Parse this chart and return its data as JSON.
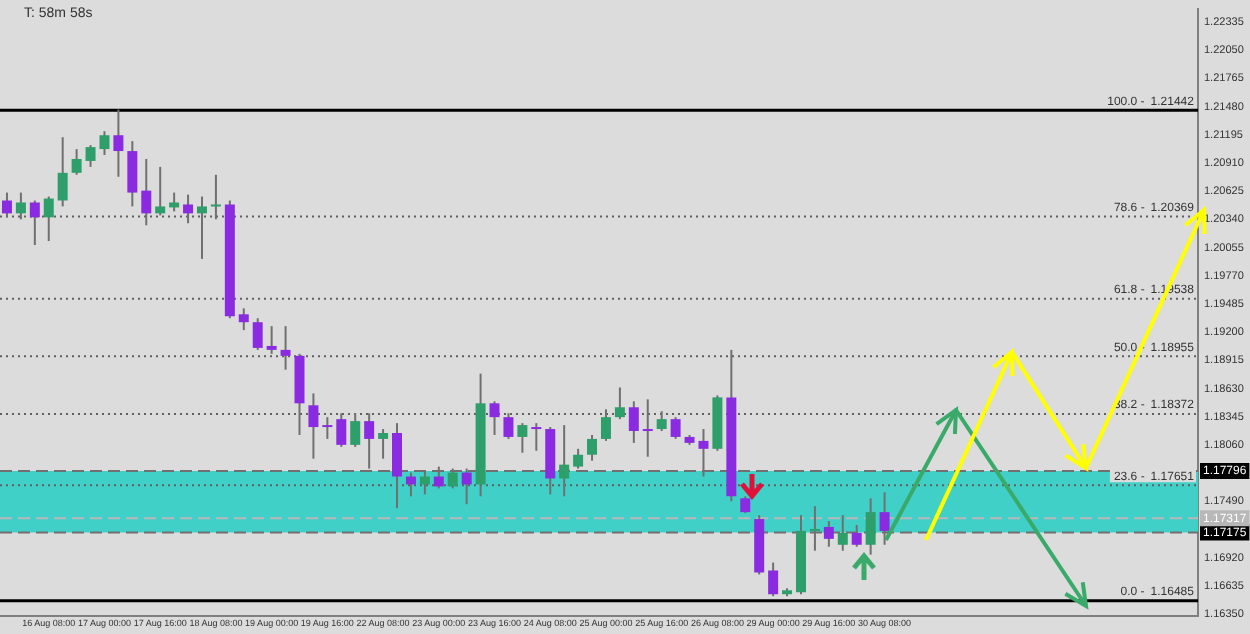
{
  "chart_data": {
    "type": "candlestick",
    "categories": [
      null,
      null,
      null,
      "16 Aug 08:00",
      null,
      null,
      null,
      "17 Aug 00:00",
      null,
      null,
      null,
      "17 Aug 16:00",
      null,
      null,
      null,
      "18 Aug 08:00",
      null,
      null,
      null,
      "19 Aug 00:00",
      null,
      null,
      null,
      "19 Aug 16:00",
      null,
      null,
      null,
      "22 Aug 08:00",
      null,
      null,
      null,
      "23 Aug 00:00",
      null,
      null,
      null,
      "23 Aug 16:00",
      null,
      null,
      null,
      "24 Aug 08:00",
      null,
      null,
      null,
      "25 Aug 00:00",
      null,
      null,
      null,
      "25 Aug 16:00",
      null,
      null,
      null,
      "26 Aug 08:00",
      null,
      null,
      null,
      "29 Aug 00:00",
      null,
      null,
      null,
      "29 Aug 16:00",
      null,
      null,
      null,
      "30 Aug 08:00",
      null,
      null,
      null,
      null,
      null,
      null,
      null,
      null,
      null,
      null,
      null,
      null,
      null,
      null,
      null,
      null,
      null,
      null,
      null,
      null,
      null,
      null
    ],
    "ohlc": [
      [
        1.2053,
        1.2061,
        1.2036,
        1.204
      ],
      [
        1.204,
        1.2061,
        1.2034,
        1.2051
      ],
      [
        1.2051,
        1.2053,
        1.2008,
        1.2036
      ],
      [
        1.2036,
        1.2057,
        1.2012,
        1.2055
      ],
      [
        1.2053,
        1.2117,
        1.2047,
        1.2081
      ],
      [
        1.2081,
        1.2105,
        1.2079,
        1.2095
      ],
      [
        1.2093,
        1.2109,
        1.2087,
        1.2107
      ],
      [
        1.2105,
        1.2123,
        1.2099,
        1.2119
      ],
      [
        1.2119,
        1.2145,
        1.2077,
        1.2103
      ],
      [
        1.2103,
        1.2113,
        1.2047,
        1.2061
      ],
      [
        1.2063,
        1.2095,
        1.2028,
        1.204
      ],
      [
        1.204,
        1.2087,
        1.2038,
        1.2047
      ],
      [
        1.2046,
        1.2061,
        1.2042,
        1.2051
      ],
      [
        1.2049,
        1.2059,
        1.203,
        1.204
      ],
      [
        1.204,
        1.2057,
        1.1994,
        1.2047
      ],
      [
        1.2047,
        1.2079,
        1.2034,
        1.2049
      ],
      [
        1.2049,
        1.2053,
        1.1934,
        1.1936
      ],
      [
        1.1938,
        1.1944,
        1.1922,
        1.193
      ],
      [
        1.193,
        1.1934,
        1.1902,
        1.1904
      ],
      [
        1.1906,
        1.1926,
        1.1898,
        1.1902
      ],
      [
        1.1902,
        1.1926,
        1.1882,
        1.1896
      ],
      [
        1.1896,
        1.1898,
        1.1816,
        1.1848
      ],
      [
        1.1846,
        1.1858,
        1.1792,
        1.1824
      ],
      [
        1.1826,
        1.1834,
        1.1812,
        1.1824
      ],
      [
        1.1832,
        1.1838,
        1.1804,
        1.1806
      ],
      [
        1.1806,
        1.1838,
        1.1804,
        1.183
      ],
      [
        1.183,
        1.1838,
        1.1782,
        1.1812
      ],
      [
        1.1812,
        1.1822,
        1.1792,
        1.1818
      ],
      [
        1.1818,
        1.1828,
        1.1742,
        1.1774
      ],
      [
        1.1774,
        1.1778,
        1.1754,
        1.1766
      ],
      [
        1.1766,
        1.178,
        1.1756,
        1.1774
      ],
      [
        1.1774,
        1.1784,
        1.1762,
        1.1764
      ],
      [
        1.1764,
        1.1782,
        1.1762,
        1.1778
      ],
      [
        1.1778,
        1.1782,
        1.1746,
        1.1766
      ],
      [
        1.1766,
        1.1878,
        1.1754,
        1.1848
      ],
      [
        1.1848,
        1.185,
        1.1816,
        1.1834
      ],
      [
        1.1834,
        1.1838,
        1.1812,
        1.1814
      ],
      [
        1.1814,
        1.1828,
        1.1798,
        1.1826
      ],
      [
        1.1824,
        1.1828,
        1.18,
        1.1822
      ],
      [
        1.1822,
        1.1824,
        1.1756,
        1.1772
      ],
      [
        1.1772,
        1.1826,
        1.1754,
        1.1786
      ],
      [
        1.1784,
        1.1802,
        1.1782,
        1.1796
      ],
      [
        1.1796,
        1.1816,
        1.179,
        1.1812
      ],
      [
        1.1812,
        1.1842,
        1.181,
        1.1834
      ],
      [
        1.1834,
        1.1864,
        1.1832,
        1.1844
      ],
      [
        1.1844,
        1.185,
        1.1808,
        1.182
      ],
      [
        1.1822,
        1.1852,
        1.1794,
        1.182
      ],
      [
        1.1822,
        1.184,
        1.182,
        1.1832
      ],
      [
        1.1832,
        1.1834,
        1.1812,
        1.1814
      ],
      [
        1.1814,
        1.1816,
        1.1806,
        1.1808
      ],
      [
        1.181,
        1.1822,
        1.1774,
        1.1802
      ],
      [
        1.1802,
        1.1856,
        1.18,
        1.1854
      ],
      [
        1.1854,
        1.1902,
        1.1749,
        1.1754
      ],
      [
        1.1752,
        1.1754,
        1.1737,
        1.1738
      ],
      [
        1.1731,
        1.1735,
        1.1675,
        1.1677
      ],
      [
        1.1679,
        1.1687,
        1.1653,
        1.1655
      ],
      [
        1.1655,
        1.1661,
        1.1653,
        1.1659
      ],
      [
        1.1657,
        1.1735,
        1.1655,
        1.1719
      ],
      [
        1.1719,
        1.1744,
        1.1699,
        1.1721
      ],
      [
        1.1723,
        1.1729,
        1.1703,
        1.1711
      ],
      [
        1.1705,
        1.1735,
        1.1699,
        1.1717
      ],
      [
        1.1717,
        1.1725,
        1.1703,
        1.1705
      ],
      [
        1.1705,
        1.1752,
        1.1695,
        1.1738
      ],
      [
        1.1738,
        1.1758,
        1.1705,
        1.1719
      ],
      null,
      null,
      null,
      null,
      null,
      null,
      null,
      null,
      null,
      null,
      null,
      null,
      null,
      null,
      null,
      null,
      null,
      null,
      null,
      null,
      null,
      null
    ],
    "colors": [
      "#8a2be2",
      "#2e9e6b",
      "#8a2be2",
      "#2e9e6b",
      "#2e9e6b",
      "#2e9e6b",
      "#2e9e6b",
      "#2e9e6b",
      "#8a2be2",
      "#8a2be2",
      "#8a2be2",
      "#2e9e6b",
      "#2e9e6b",
      "#8a2be2",
      "#2e9e6b",
      "#2e9e6b",
      "#8a2be2",
      "#8a2be2",
      "#8a2be2",
      "#8a2be2",
      "#8a2be2",
      "#8a2be2",
      "#8a2be2",
      "#8a2be2",
      "#8a2be2",
      "#2e9e6b",
      "#8a2be2",
      "#2e9e6b",
      "#8a2be2",
      "#8a2be2",
      "#2e9e6b",
      "#8a2be2",
      "#2e9e6b",
      "#8a2be2",
      "#2e9e6b",
      "#8a2be2",
      "#8a2be2",
      "#2e9e6b",
      "#8a2be2",
      "#8a2be2",
      "#2e9e6b",
      "#2e9e6b",
      "#2e9e6b",
      "#2e9e6b",
      "#2e9e6b",
      "#8a2be2",
      "#8a2be2",
      "#2e9e6b",
      "#8a2be2",
      "#8a2be2",
      "#8a2be2",
      "#2e9e6b",
      "#8a2be2",
      "#8a2be2",
      "#8a2be2",
      "#8a2be2",
      "#2e9e6b",
      "#2e9e6b",
      "#2e9e6b",
      "#8a2be2",
      "#2e9e6b",
      "#8a2be2",
      "#2e9e6b",
      "#8a2be2",
      null,
      null,
      null,
      null,
      null,
      null,
      null,
      null,
      null,
      null,
      null,
      null,
      null,
      null,
      null,
      null,
      null,
      null,
      null,
      null,
      null,
      null
    ],
    "ylim": [
      1.1633,
      1.2247
    ],
    "yticks": [
      {
        "value": 1.1635,
        "label": "1.16350"
      },
      {
        "value": 1.16635,
        "label": "1.16635"
      },
      {
        "value": 1.1692,
        "label": "1.16920"
      },
      {
        "value": 1.1749,
        "label": "1.17490"
      },
      {
        "value": 1.1806,
        "label": "1.18060"
      },
      {
        "value": 1.18345,
        "label": "1.18345"
      },
      {
        "value": 1.1863,
        "label": "1.18630"
      },
      {
        "value": 1.18915,
        "label": "1.18915"
      },
      {
        "value": 1.192,
        "label": "1.19200"
      },
      {
        "value": 1.19485,
        "label": "1.19485"
      },
      {
        "value": 1.1977,
        "label": "1.19770"
      },
      {
        "value": 1.20055,
        "label": "1.20055"
      },
      {
        "value": 1.2034,
        "label": "1.20340"
      },
      {
        "value": 1.20625,
        "label": "1.20625"
      },
      {
        "value": 1.2091,
        "label": "1.20910"
      },
      {
        "value": 1.21195,
        "label": "1.21195"
      },
      {
        "value": 1.2148,
        "label": "1.21480"
      },
      {
        "value": 1.21765,
        "label": "1.21765"
      },
      {
        "value": 1.2205,
        "label": "1.22050"
      },
      {
        "value": 1.22335,
        "label": "1.22335"
      }
    ],
    "grid": false,
    "ref_lines": [
      {
        "axis": "y",
        "value": 1.21442,
        "label": "1.21442",
        "color": "#000000",
        "line_style": "solid"
      },
      {
        "axis": "y",
        "value": 1.20369,
        "label": "1.20369",
        "color": "#606060",
        "line_style": "dotted"
      },
      {
        "axis": "y",
        "value": 1.19538,
        "label": "1.19538",
        "color": "#606060",
        "line_style": "dotted"
      },
      {
        "axis": "y",
        "value": 1.18955,
        "label": "1.18955",
        "color": "#606060",
        "line_style": "dotted"
      },
      {
        "axis": "y",
        "value": 1.18372,
        "label": "1.18372",
        "color": "#606060",
        "line_style": "dotted"
      },
      {
        "axis": "y",
        "value": 1.17651,
        "label": "1.17651",
        "color": "#606060",
        "line_style": "dotted"
      },
      {
        "axis": "y",
        "value": 1.16485,
        "label": "1.16485",
        "color": "#000000",
        "line_style": "solid"
      },
      {
        "axis": "y",
        "value": 1.17796,
        "label": "1.17796",
        "color": "#707070",
        "line_style": "dashed"
      },
      {
        "axis": "y",
        "value": 1.17175,
        "label": "1.17175",
        "color": "#707070",
        "line_style": "dashed"
      },
      {
        "axis": "y",
        "value": 1.17317,
        "label": "1.17317",
        "color": "#b8b8b8",
        "line_style": "dashed"
      }
    ],
    "bands": [
      {
        "axis": "y",
        "from": 1.17175,
        "to": 1.17796,
        "color": "#40d0c8"
      }
    ],
    "annotations": [
      "T: 58m 58s",
      {
        "text": "100.0 -",
        "y": 1.21442
      },
      {
        "text": "78.6 -",
        "y": 1.20369
      },
      {
        "text": "61.8 -",
        "y": 1.19538
      },
      {
        "text": "50.0 -",
        "y": 1.18955
      },
      {
        "text": "38.2 -",
        "y": 1.18372
      },
      {
        "text": "23.6 -",
        "y": 1.17651
      },
      {
        "text": "0.0 -",
        "y": 1.16485
      }
    ]
  }
}
